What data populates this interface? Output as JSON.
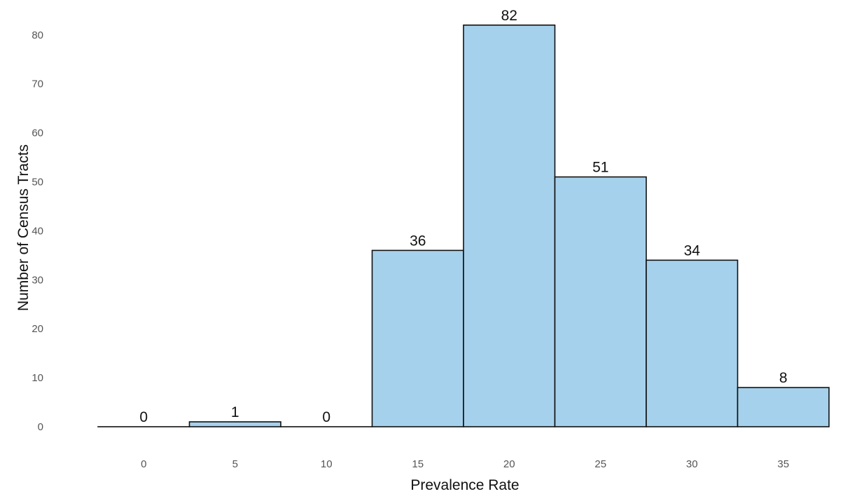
{
  "chart_data": {
    "type": "bar",
    "title": "",
    "xlabel": "Prevalence Rate",
    "ylabel": "Number of Census Tracts",
    "categories": [
      "0",
      "5",
      "10",
      "15",
      "20",
      "25",
      "30",
      "35"
    ],
    "values": [
      0,
      1,
      0,
      36,
      82,
      51,
      34,
      8
    ],
    "data_labels": [
      "0",
      "1",
      "0",
      "36",
      "82",
      "51",
      "34",
      "8"
    ],
    "y_ticks": [
      "0",
      "10",
      "20",
      "30",
      "40",
      "50",
      "60",
      "70",
      "80"
    ],
    "ylim": [
      0,
      82
    ],
    "grid": false,
    "legend": "none",
    "bar_color": "#a6d1ec",
    "bar_outline": "#111111"
  }
}
